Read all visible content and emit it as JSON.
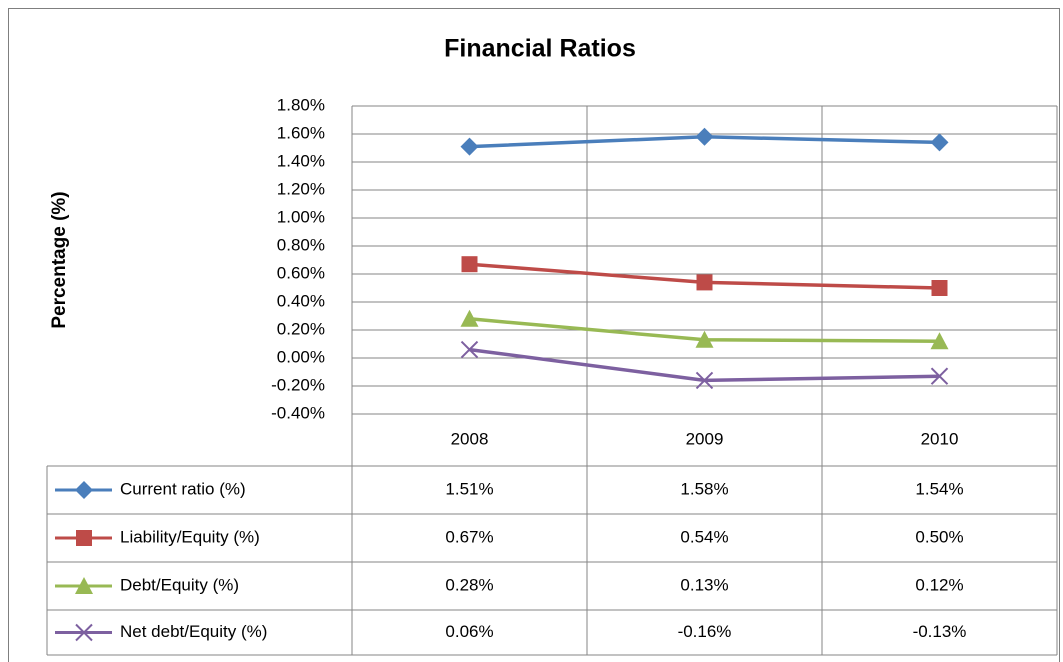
{
  "chart_data": {
    "type": "line",
    "title": "Financial Ratios",
    "y_label": "Percentage (%)",
    "categories": [
      "2008",
      "2009",
      "2010"
    ],
    "series": [
      {
        "name": "Current ratio (%)",
        "color": "#4a7ebb",
        "marker": "diamond",
        "values": [
          1.51,
          1.58,
          1.54
        ],
        "value_labels": [
          "1.51%",
          "1.58%",
          "1.54%"
        ]
      },
      {
        "name": "Liability/Equity (%)",
        "color": "#be4b48",
        "marker": "square",
        "values": [
          0.67,
          0.54,
          0.5
        ],
        "value_labels": [
          "0.67%",
          "0.54%",
          "0.50%"
        ]
      },
      {
        "name": "Debt/Equity (%)",
        "color": "#98b954",
        "marker": "triangle",
        "values": [
          0.28,
          0.13,
          0.12
        ],
        "value_labels": [
          "0.28%",
          "0.13%",
          "0.12%"
        ]
      },
      {
        "name": "Net debt/Equity (%)",
        "color": "#7d60a0",
        "marker": "x",
        "values": [
          0.06,
          -0.16,
          -0.13
        ],
        "value_labels": [
          "0.06%",
          "-0.16%",
          "-0.13%"
        ]
      }
    ],
    "ylim": [
      -0.4,
      1.8
    ],
    "yticks": [
      {
        "value": -0.4,
        "label": "-0.40%"
      },
      {
        "value": -0.2,
        "label": "-0.20%"
      },
      {
        "value": 0,
        "label": "0.00%"
      },
      {
        "value": 0.2,
        "label": "0.20%"
      },
      {
        "value": 0.4,
        "label": "0.40%"
      },
      {
        "value": 0.6,
        "label": "0.60%"
      },
      {
        "value": 0.8,
        "label": "0.80%"
      },
      {
        "value": 1.0,
        "label": "1.00%"
      },
      {
        "value": 1.2,
        "label": "1.20%"
      },
      {
        "value": 1.4,
        "label": "1.40%"
      },
      {
        "value": 1.6,
        "label": "1.60%"
      },
      {
        "value": 1.8,
        "label": "1.80%"
      }
    ],
    "grid": true,
    "data_table": true
  }
}
